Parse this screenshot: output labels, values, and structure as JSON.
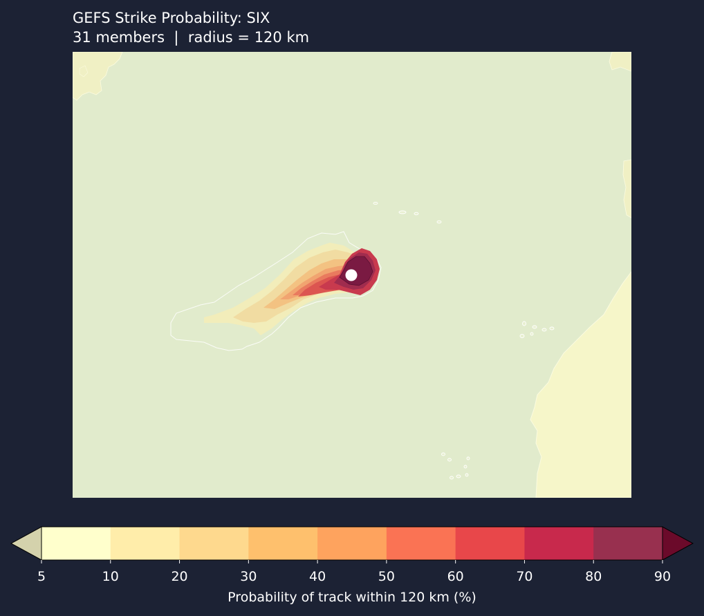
{
  "title": "GEFS Strike Probability: SIX",
  "subtitle": "31 members  |  radius = 120 km",
  "colors": {
    "background": "#1c2234",
    "ocean": "#e1ebcc",
    "land": "#f6f6c9",
    "storm_marker": "#ffffff"
  },
  "colorbar": {
    "label": "Probability of track within 120 km (%)",
    "ticks": [
      "5",
      "10",
      "20",
      "30",
      "40",
      "50",
      "60",
      "70",
      "80",
      "90"
    ],
    "levels": [
      5,
      10,
      20,
      30,
      40,
      50,
      60,
      70,
      80,
      90
    ],
    "under_color": "#d4d2ac",
    "over_color": "#6b0a2a",
    "bin_colors": [
      "#ffffcc",
      "#ffedaa",
      "#fed98e",
      "#fec06d",
      "#fea35e",
      "#fa7354",
      "#e8474a",
      "#c8294c",
      "#98304f"
    ]
  },
  "map": {
    "variable": "strike probability (%)",
    "peak_probability_shown": 90,
    "storm": "SIX"
  }
}
